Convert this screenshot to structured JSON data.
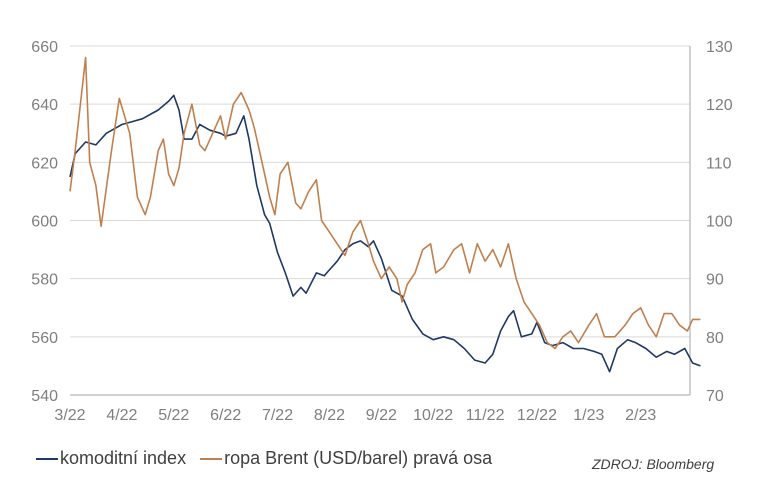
{
  "chart_data": {
    "type": "line",
    "x_labels": [
      "3/22",
      "4/22",
      "5/22",
      "6/22",
      "7/22",
      "8/22",
      "9/22",
      "10/22",
      "11/22",
      "12/22",
      "1/23",
      "2/23"
    ],
    "left_axis": {
      "ylim": [
        540,
        660
      ],
      "ticks": [
        "540",
        "560",
        "580",
        "600",
        "620",
        "640",
        "660"
      ]
    },
    "right_axis": {
      "ylim": [
        70,
        130
      ],
      "ticks": [
        "70",
        "80",
        "90",
        "100",
        "110",
        "120",
        "130"
      ]
    },
    "grid": "horizontal",
    "legend_position": "bottom-left",
    "series": [
      {
        "name": "komoditní index",
        "axis": "left",
        "color": "#1f3864",
        "values": [
          [
            0,
            615
          ],
          [
            0.1,
            623
          ],
          [
            0.3,
            627
          ],
          [
            0.5,
            626
          ],
          [
            0.7,
            630
          ],
          [
            1.0,
            633
          ],
          [
            1.2,
            634
          ],
          [
            1.4,
            635
          ],
          [
            1.7,
            638
          ],
          [
            1.9,
            641
          ],
          [
            2.0,
            643
          ],
          [
            2.1,
            638
          ],
          [
            2.2,
            628
          ],
          [
            2.35,
            628
          ],
          [
            2.5,
            633
          ],
          [
            2.7,
            631
          ],
          [
            2.9,
            630
          ],
          [
            3.0,
            629
          ],
          [
            3.2,
            630
          ],
          [
            3.35,
            636
          ],
          [
            3.45,
            628
          ],
          [
            3.6,
            612
          ],
          [
            3.75,
            602
          ],
          [
            3.85,
            599
          ],
          [
            4.0,
            589
          ],
          [
            4.15,
            582
          ],
          [
            4.3,
            574
          ],
          [
            4.45,
            577
          ],
          [
            4.55,
            575
          ],
          [
            4.75,
            582
          ],
          [
            4.9,
            581
          ],
          [
            5.0,
            583
          ],
          [
            5.15,
            586
          ],
          [
            5.3,
            590
          ],
          [
            5.45,
            592
          ],
          [
            5.6,
            593
          ],
          [
            5.75,
            591
          ],
          [
            5.85,
            593
          ],
          [
            6.0,
            587
          ],
          [
            6.2,
            576
          ],
          [
            6.4,
            574
          ],
          [
            6.6,
            566
          ],
          [
            6.8,
            561
          ],
          [
            7.0,
            559
          ],
          [
            7.2,
            560
          ],
          [
            7.4,
            559
          ],
          [
            7.6,
            556
          ],
          [
            7.8,
            552
          ],
          [
            8.0,
            551
          ],
          [
            8.15,
            554
          ],
          [
            8.3,
            562
          ],
          [
            8.45,
            567
          ],
          [
            8.55,
            569
          ],
          [
            8.7,
            560
          ],
          [
            8.9,
            561
          ],
          [
            9.0,
            565
          ],
          [
            9.15,
            558
          ],
          [
            9.3,
            557
          ],
          [
            9.5,
            558
          ],
          [
            9.7,
            556
          ],
          [
            9.9,
            556
          ],
          [
            10.1,
            555
          ],
          [
            10.25,
            554
          ],
          [
            10.4,
            548
          ],
          [
            10.55,
            556
          ],
          [
            10.75,
            559
          ],
          [
            10.9,
            558
          ],
          [
            11.1,
            556
          ],
          [
            11.3,
            553
          ],
          [
            11.5,
            555
          ],
          [
            11.65,
            554
          ],
          [
            11.85,
            556
          ],
          [
            12.0,
            551
          ],
          [
            12.15,
            550
          ]
        ]
      },
      {
        "name": "ropa Brent (USD/barel) pravá osa",
        "axis": "right",
        "color": "#c0804e",
        "values": [
          [
            0,
            105
          ],
          [
            0.1,
            112
          ],
          [
            0.2,
            120
          ],
          [
            0.3,
            128
          ],
          [
            0.38,
            110
          ],
          [
            0.5,
            106
          ],
          [
            0.6,
            99
          ],
          [
            0.8,
            112
          ],
          [
            0.95,
            121
          ],
          [
            1.05,
            118
          ],
          [
            1.15,
            115
          ],
          [
            1.3,
            104
          ],
          [
            1.45,
            101
          ],
          [
            1.55,
            104
          ],
          [
            1.7,
            112
          ],
          [
            1.8,
            114
          ],
          [
            1.9,
            108
          ],
          [
            2.0,
            106
          ],
          [
            2.1,
            109
          ],
          [
            2.2,
            115
          ],
          [
            2.35,
            120
          ],
          [
            2.5,
            113
          ],
          [
            2.6,
            112
          ],
          [
            2.75,
            115
          ],
          [
            2.9,
            118
          ],
          [
            3.0,
            114
          ],
          [
            3.15,
            120
          ],
          [
            3.3,
            122
          ],
          [
            3.45,
            119
          ],
          [
            3.55,
            116
          ],
          [
            3.7,
            110
          ],
          [
            3.85,
            104
          ],
          [
            3.95,
            101
          ],
          [
            4.05,
            108
          ],
          [
            4.2,
            110
          ],
          [
            4.35,
            103
          ],
          [
            4.45,
            102
          ],
          [
            4.6,
            105
          ],
          [
            4.75,
            107
          ],
          [
            4.85,
            100
          ],
          [
            5.0,
            98
          ],
          [
            5.15,
            96
          ],
          [
            5.3,
            94
          ],
          [
            5.45,
            98
          ],
          [
            5.6,
            100
          ],
          [
            5.75,
            96
          ],
          [
            5.85,
            93
          ],
          [
            6.0,
            90
          ],
          [
            6.15,
            92
          ],
          [
            6.3,
            90
          ],
          [
            6.4,
            86
          ],
          [
            6.5,
            89
          ],
          [
            6.65,
            91
          ],
          [
            6.8,
            95
          ],
          [
            6.95,
            96
          ],
          [
            7.05,
            91
          ],
          [
            7.2,
            92
          ],
          [
            7.4,
            95
          ],
          [
            7.55,
            96
          ],
          [
            7.7,
            91
          ],
          [
            7.85,
            96
          ],
          [
            8.0,
            93
          ],
          [
            8.15,
            95
          ],
          [
            8.3,
            92
          ],
          [
            8.45,
            96
          ],
          [
            8.6,
            90
          ],
          [
            8.75,
            86
          ],
          [
            8.9,
            84
          ],
          [
            9.05,
            82
          ],
          [
            9.2,
            79
          ],
          [
            9.35,
            78
          ],
          [
            9.5,
            80
          ],
          [
            9.65,
            81
          ],
          [
            9.8,
            79
          ],
          [
            10.0,
            82
          ],
          [
            10.15,
            84
          ],
          [
            10.3,
            80
          ],
          [
            10.5,
            80
          ],
          [
            10.7,
            82
          ],
          [
            10.85,
            84
          ],
          [
            11.0,
            85
          ],
          [
            11.15,
            82
          ],
          [
            11.3,
            80
          ],
          [
            11.45,
            84
          ],
          [
            11.6,
            84
          ],
          [
            11.75,
            82
          ],
          [
            11.9,
            81
          ],
          [
            12.0,
            83
          ],
          [
            12.15,
            83
          ]
        ]
      }
    ]
  },
  "legend": {
    "items": [
      {
        "label": "komoditní index",
        "color": "#1f3864"
      },
      {
        "label": "ropa Brent (USD/barel) pravá osa",
        "color": "#c0804e"
      }
    ]
  },
  "source": "ZDROJ: Bloomberg"
}
